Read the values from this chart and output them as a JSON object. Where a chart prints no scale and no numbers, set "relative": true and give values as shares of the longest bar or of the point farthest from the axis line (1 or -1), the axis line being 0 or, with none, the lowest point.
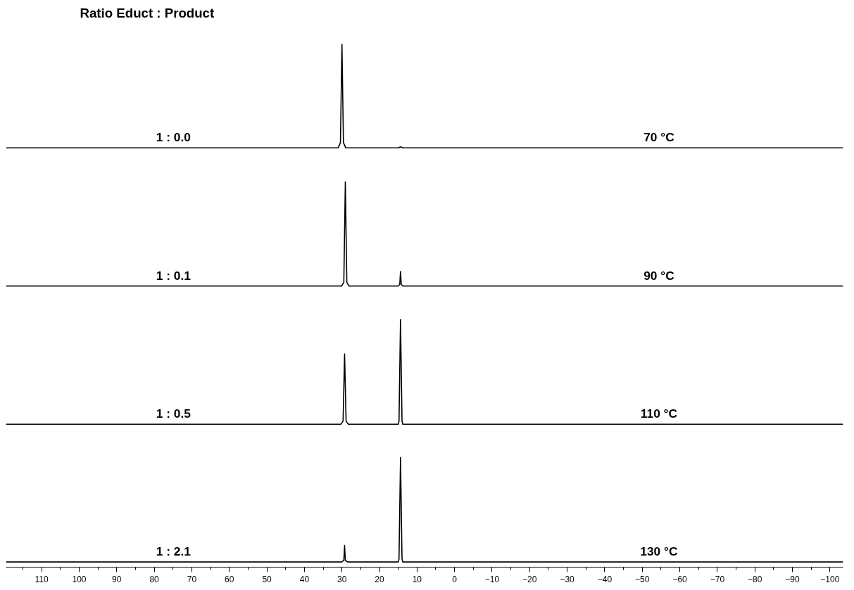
{
  "chart_data": {
    "type": "line",
    "title": "Ratio Educt : Product",
    "relative": true,
    "xlim": [
      119.5,
      -103.5
    ],
    "xticks": [
      110,
      100,
      90,
      80,
      70,
      60,
      50,
      40,
      30,
      20,
      10,
      0,
      -10,
      -20,
      -30,
      -40,
      -50,
      -60,
      -70,
      -80,
      -90,
      -100
    ],
    "grid": false,
    "marker": "none",
    "line_style": "solid",
    "annotations": [
      "1 : 0.0",
      "70 °C",
      "1 : 0.1",
      "90 °C",
      "1 : 0.5",
      "110 °C",
      "1 : 2.1",
      "130 °C"
    ],
    "series": [
      {
        "color": "#000000",
        "x": [
          119.5,
          31.0,
          30.4,
          30.0,
          29.6,
          29.0,
          15.0,
          14.4,
          13.8,
          -103.5
        ],
        "values": [
          0.8,
          0.8,
          0.81,
          1,
          0.81,
          0.8,
          0.8,
          0.802,
          0.8,
          0.8
        ]
      },
      {
        "color": "#000000",
        "x": [
          119.5,
          30.1,
          29.5,
          29.1,
          28.7,
          28.1,
          15.0,
          14.6,
          14.4,
          14.2,
          13.8,
          -103.5
        ],
        "values": [
          0.533,
          0.533,
          0.54,
          0.734,
          0.54,
          0.533,
          0.533,
          0.536,
          0.561,
          0.536,
          0.533,
          0.533
        ]
      },
      {
        "color": "#000000",
        "x": [
          119.5,
          30.3,
          29.7,
          29.3,
          28.9,
          28.3,
          15.0,
          14.8,
          14.4,
          14.0,
          13.8,
          -103.5
        ],
        "values": [
          0.266,
          0.266,
          0.272,
          0.402,
          0.272,
          0.266,
          0.266,
          0.272,
          0.468,
          0.272,
          0.266,
          0.266
        ]
      },
      {
        "color": "#000000",
        "x": [
          119.5,
          30.1,
          29.5,
          29.3,
          29.1,
          28.5,
          15.0,
          14.8,
          14.4,
          14.0,
          13.8,
          -103.5
        ],
        "values": [
          0,
          0,
          0.003,
          0.032,
          0.003,
          0,
          0,
          0.006,
          0.202,
          0.006,
          0,
          0
        ]
      }
    ]
  }
}
